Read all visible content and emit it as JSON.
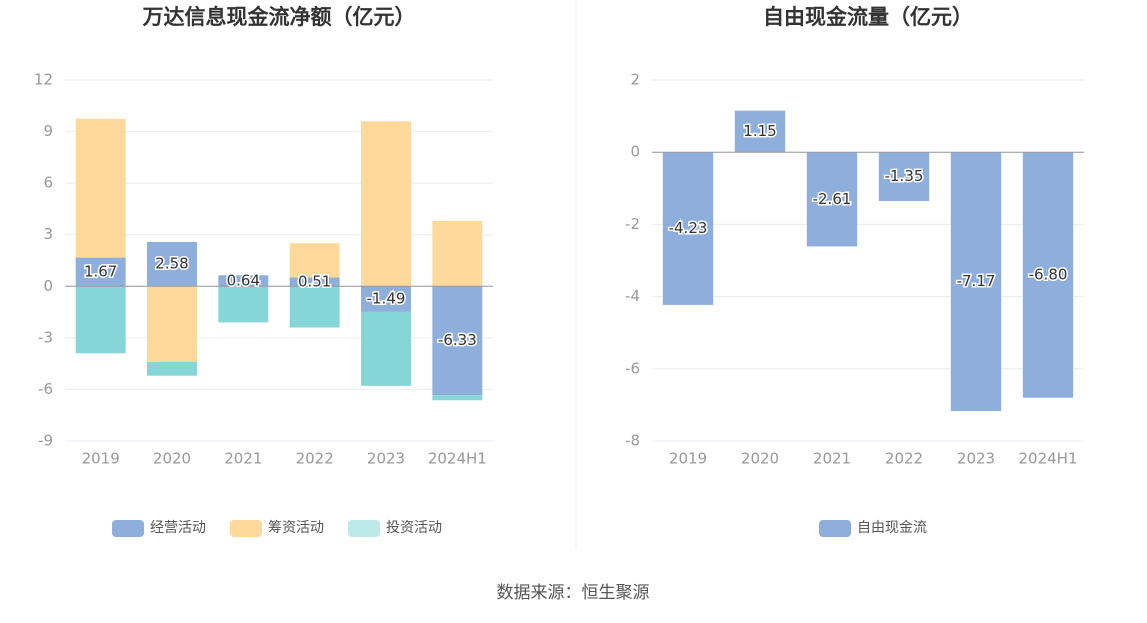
{
  "chart_data": [
    {
      "type": "stacked_bar",
      "title": "万达信息现金流净额（亿元）",
      "categories": [
        "2019",
        "2020",
        "2021",
        "2022",
        "2023",
        "2024H1"
      ],
      "series": [
        {
          "name": "经营活动",
          "color": "#8eaedc",
          "values": [
            1.67,
            2.58,
            0.64,
            0.51,
            -1.49,
            -6.33
          ],
          "show_labels": true
        },
        {
          "name": "筹资活动",
          "color": "#ffd99b",
          "values": [
            8.07,
            -4.4,
            0,
            2.0,
            9.6,
            3.8
          ],
          "show_labels": false
        },
        {
          "name": "投资活动",
          "color": "#86d6d8",
          "values": [
            -3.9,
            -0.8,
            -2.1,
            -2.4,
            -4.3,
            -0.3
          ],
          "show_labels": false
        }
      ],
      "ylim": [
        -9,
        12
      ],
      "yticks": [
        -9,
        -6,
        -3,
        0,
        3,
        6,
        9,
        12
      ],
      "grid": true
    },
    {
      "type": "bar",
      "title": "自由现金流量（亿元）",
      "categories": [
        "2019",
        "2020",
        "2021",
        "2022",
        "2023",
        "2024H1"
      ],
      "series": [
        {
          "name": "自由现金流",
          "color": "#8eaedc",
          "values": [
            -4.23,
            1.15,
            -2.61,
            -1.35,
            -7.17,
            -6.8
          ],
          "value_labels": [
            "-4.23",
            "1.15",
            "-2.61",
            "-1.35",
            "-7.17",
            "-6.80"
          ],
          "show_labels": true
        }
      ],
      "ylim": [
        -8,
        2
      ],
      "yticks": [
        -8,
        -6,
        -4,
        -2,
        0,
        2
      ],
      "grid": true
    }
  ],
  "source": "数据来源：恒生聚源"
}
